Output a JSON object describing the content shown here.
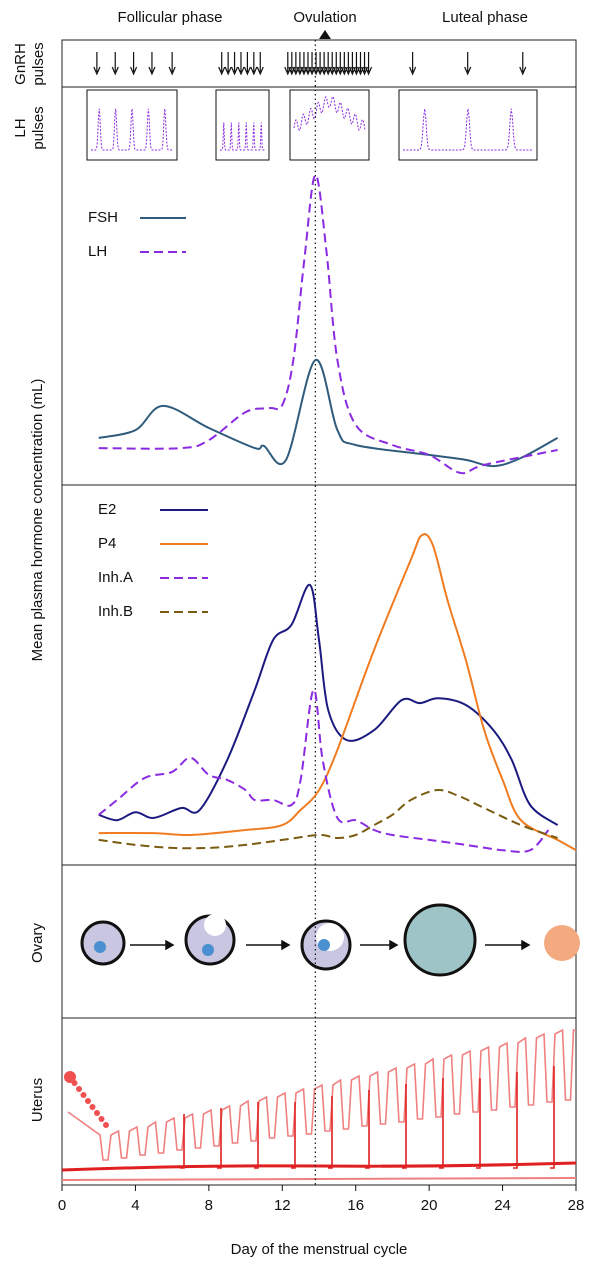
{
  "phases": [
    "Follicular phase",
    "Ovulation",
    "Luteal phase"
  ],
  "row_labels": {
    "gnrh": [
      "GnRH",
      "pulses"
    ],
    "lh_pulses": [
      "LH",
      "pulses"
    ],
    "ovary": "Ovary",
    "uterus": "Uterus"
  },
  "gnrh_pulse_days": [
    1.9,
    2.9,
    3.9,
    4.9,
    6.0,
    8.7,
    9.05,
    9.4,
    9.75,
    10.1,
    10.45,
    10.8,
    12.3,
    12.52,
    12.74,
    12.96,
    13.18,
    13.4,
    13.62,
    13.84,
    14.06,
    14.28,
    14.5,
    14.72,
    14.94,
    15.16,
    15.38,
    15.6,
    15.82,
    16.04,
    16.26,
    16.48,
    16.7,
    19.1,
    22.1,
    25.1
  ],
  "ovulation_day": 13.8,
  "chart_data": [
    {
      "type": "line",
      "ylabel": "Mean plasma hormone concentration (mL)",
      "xlim": [
        0,
        28
      ],
      "ylim": [
        0,
        100
      ],
      "series": [
        {
          "name": "FSH",
          "color": "#2f5b7c",
          "dashed": false,
          "x": [
            2,
            4,
            5.5,
            8,
            10.5,
            11,
            12.2,
            13.8,
            15,
            16,
            20,
            22,
            23.5,
            25,
            27
          ],
          "values": [
            15.2,
            17.7,
            25.5,
            18.4,
            11.9,
            12.6,
            8.1,
            40.3,
            17.7,
            12.9,
            9.7,
            8.1,
            6.1,
            8.7,
            15.2
          ]
        },
        {
          "name": "LH",
          "color": "#8a2be2",
          "dashed": true,
          "x": [
            2,
            6.5,
            8,
            10,
            11.3,
            12,
            12.6,
            13.2,
            13.8,
            14.4,
            15,
            16,
            18,
            20,
            21.7,
            23,
            27
          ],
          "values": [
            11.9,
            11.9,
            14.5,
            23.5,
            24.8,
            25.8,
            40.3,
            72.6,
            100,
            75.8,
            40.3,
            19.4,
            12.9,
            9.7,
            3.9,
            6.5,
            11.3
          ]
        }
      ]
    },
    {
      "type": "line",
      "xlabel": "Day of the menstrual cycle",
      "xlim": [
        0,
        28
      ],
      "xticks": [
        0,
        4,
        8,
        12,
        16,
        20,
        24,
        28
      ],
      "ylim": [
        0,
        100
      ],
      "series": [
        {
          "name": "E2",
          "color": "#1a1a80",
          "dashed": false,
          "x": [
            2,
            3,
            4,
            5,
            6.5,
            7.5,
            9,
            10.5,
            11.5,
            12.5,
            13.5,
            14,
            14.5,
            15.5,
            17,
            18.5,
            19.5,
            20.5,
            22,
            23.5,
            24.5,
            25.5,
            27
          ],
          "values": [
            13.2,
            11.8,
            13.9,
            12.4,
            15,
            14.5,
            27.6,
            46.1,
            59.2,
            63.2,
            73.7,
            59.2,
            40.8,
            32.9,
            35.5,
            43.4,
            42.6,
            43.9,
            42.1,
            35.5,
            27.6,
            15.8,
            10.5
          ]
        },
        {
          "name": "P4",
          "color": "#f07c22",
          "dashed": false,
          "x": [
            2,
            5,
            7,
            10,
            12,
            13,
            14,
            15,
            17,
            19,
            19.6,
            20.2,
            21,
            22,
            23,
            24,
            25,
            27,
            28
          ],
          "values": [
            8.4,
            8.4,
            7.9,
            9.2,
            10.5,
            14.5,
            19.7,
            30.3,
            56.6,
            80.3,
            86.8,
            84.2,
            69.7,
            53.9,
            35.5,
            22.4,
            11.8,
            6.6,
            3.9
          ]
        },
        {
          "name": "Inh.A",
          "color": "#8a2be2",
          "dashed": true,
          "x": [
            2,
            3,
            4.5,
            6,
            7,
            8,
            9,
            10,
            10.5,
            11.5,
            12.5,
            13,
            13.7,
            14.2,
            15,
            16,
            17,
            18,
            20,
            22,
            24,
            25.5,
            26.5
          ],
          "values": [
            13.2,
            17.1,
            22.9,
            24.5,
            28.2,
            23.7,
            22.4,
            19.7,
            17.1,
            17.1,
            15.8,
            22.4,
            46.1,
            27.6,
            12.4,
            11.8,
            9.2,
            7.9,
            6.6,
            5.3,
            3.9,
            3.9,
            9.2
          ]
        },
        {
          "name": "Inh.B",
          "color": "#7a5c10",
          "dashed": true,
          "x": [
            2,
            4,
            6,
            8,
            10,
            12,
            14,
            15,
            16,
            17,
            18,
            19,
            20.4,
            21.5,
            23,
            25,
            27
          ],
          "values": [
            6.6,
            5.3,
            4.5,
            4.5,
            5.3,
            6.6,
            7.9,
            7.1,
            7.9,
            10.5,
            13.2,
            17.1,
            19.7,
            18.4,
            15,
            10.5,
            7.1
          ]
        }
      ]
    }
  ]
}
